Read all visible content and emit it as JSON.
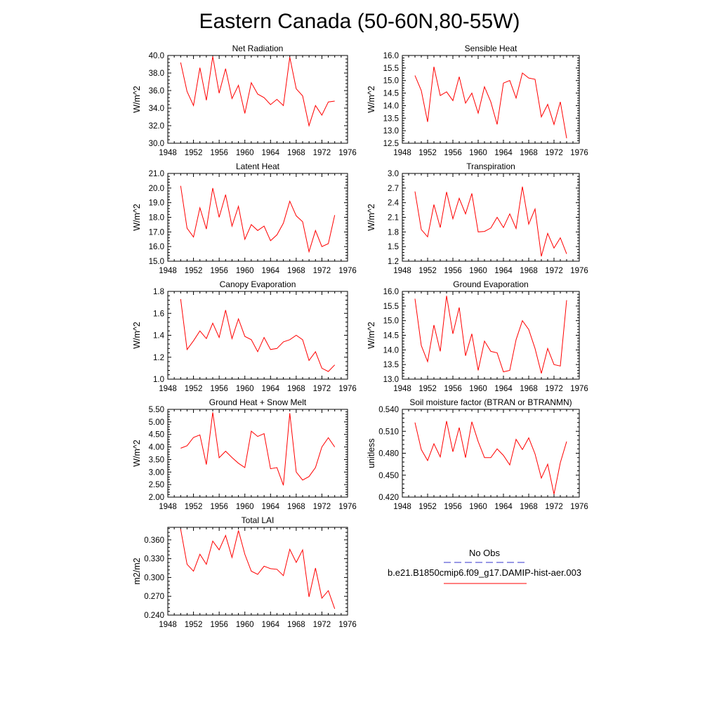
{
  "figure": {
    "title": "Eastern Canada (50-60N,80-55W)",
    "legend": {
      "entries": [
        {
          "label": "No Obs",
          "color": "#3333cc",
          "style": "dashed"
        },
        {
          "label": "b.e21.B1850cmip6.f09_g17.DAMIP-hist-aer.003",
          "color": "#ff0000",
          "style": "solid"
        }
      ]
    }
  },
  "chart_data": [
    {
      "type": "line",
      "title": "Net Radiation",
      "ylabel": "W/m^2",
      "xlim": [
        1948,
        1976
      ],
      "xticks": [
        "1948",
        "1952",
        "1956",
        "1960",
        "1964",
        "1968",
        "1972",
        "1976"
      ],
      "ylim": [
        30,
        40
      ],
      "yticks": [
        "30.0",
        "32.0",
        "34.0",
        "36.0",
        "38.0",
        "40.0"
      ],
      "series": [
        {
          "color": "#ff0000",
          "x": [
            1950,
            1951,
            1952,
            1953,
            1954,
            1955,
            1956,
            1957,
            1958,
            1959,
            1960,
            1961,
            1962,
            1963,
            1964,
            1965,
            1966,
            1967,
            1968,
            1969,
            1970,
            1971,
            1972,
            1973,
            1974
          ],
          "values": [
            39.2,
            35.9,
            34.3,
            38.6,
            34.9,
            39.9,
            35.7,
            38.5,
            35.1,
            36.6,
            33.4,
            36.9,
            35.6,
            35.2,
            34.4,
            35.0,
            34.3,
            39.8,
            36.2,
            35.4,
            32.0,
            34.3,
            33.2,
            34.7,
            34.8
          ]
        }
      ]
    },
    {
      "type": "line",
      "title": "Sensible Heat",
      "ylabel": "W/m^2",
      "xlim": [
        1948,
        1976
      ],
      "xticks": [
        "1948",
        "1952",
        "1956",
        "1960",
        "1964",
        "1968",
        "1972",
        "1976"
      ],
      "ylim": [
        12.5,
        16
      ],
      "yticks": [
        "12.5",
        "13.0",
        "13.5",
        "14.0",
        "14.5",
        "15.0",
        "15.5",
        "16.0"
      ],
      "series": [
        {
          "color": "#ff0000",
          "x": [
            1950,
            1951,
            1952,
            1953,
            1954,
            1955,
            1956,
            1957,
            1958,
            1959,
            1960,
            1961,
            1962,
            1963,
            1964,
            1965,
            1966,
            1967,
            1968,
            1969,
            1970,
            1971,
            1972,
            1973,
            1974
          ],
          "values": [
            15.2,
            14.6,
            13.35,
            15.55,
            14.4,
            14.55,
            14.2,
            15.15,
            14.1,
            14.5,
            13.7,
            14.75,
            14.15,
            13.25,
            14.9,
            15.0,
            14.3,
            15.3,
            15.1,
            15.05,
            13.55,
            14.05,
            13.25,
            14.15,
            12.7
          ]
        }
      ]
    },
    {
      "type": "line",
      "title": "Latent Heat",
      "ylabel": "W/m^2",
      "xlim": [
        1948,
        1976
      ],
      "xticks": [
        "1948",
        "1952",
        "1956",
        "1960",
        "1964",
        "1968",
        "1972",
        "1976"
      ],
      "ylim": [
        15,
        21
      ],
      "yticks": [
        "15.0",
        "16.0",
        "17.0",
        "18.0",
        "19.0",
        "20.0",
        "21.0"
      ],
      "series": [
        {
          "color": "#ff0000",
          "x": [
            1950,
            1951,
            1952,
            1953,
            1954,
            1955,
            1956,
            1957,
            1958,
            1959,
            1960,
            1961,
            1962,
            1963,
            1964,
            1965,
            1966,
            1967,
            1968,
            1969,
            1970,
            1971,
            1972,
            1973,
            1974
          ],
          "values": [
            20.15,
            17.25,
            16.65,
            18.65,
            17.2,
            20.0,
            18.0,
            19.55,
            17.4,
            18.75,
            16.5,
            17.5,
            17.1,
            17.4,
            16.4,
            16.8,
            17.6,
            19.1,
            18.1,
            17.7,
            15.65,
            17.1,
            16.0,
            16.2,
            18.15
          ]
        }
      ]
    },
    {
      "type": "line",
      "title": "Transpiration",
      "ylabel": "W/m^2",
      "xlim": [
        1948,
        1976
      ],
      "xticks": [
        "1948",
        "1952",
        "1956",
        "1960",
        "1964",
        "1968",
        "1972",
        "1976"
      ],
      "ylim": [
        1.2,
        3.0
      ],
      "yticks": [
        "1.2",
        "1.5",
        "1.8",
        "2.1",
        "2.4",
        "2.7",
        "3.0"
      ],
      "series": [
        {
          "color": "#ff0000",
          "x": [
            1950,
            1951,
            1952,
            1953,
            1954,
            1955,
            1956,
            1957,
            1958,
            1959,
            1960,
            1961,
            1962,
            1963,
            1964,
            1965,
            1966,
            1967,
            1968,
            1969,
            1970,
            1971,
            1972,
            1973,
            1974
          ],
          "values": [
            2.63,
            1.85,
            1.7,
            2.36,
            1.89,
            2.62,
            2.07,
            2.49,
            2.17,
            2.59,
            1.8,
            1.81,
            1.88,
            2.1,
            1.89,
            2.17,
            1.87,
            2.73,
            1.96,
            2.27,
            1.3,
            1.77,
            1.47,
            1.68,
            1.35
          ]
        }
      ]
    },
    {
      "type": "line",
      "title": "Canopy Evaporation",
      "ylabel": "W/m^2",
      "xlim": [
        1948,
        1976
      ],
      "xticks": [
        "1948",
        "1952",
        "1956",
        "1960",
        "1964",
        "1968",
        "1972",
        "1976"
      ],
      "ylim": [
        1.0,
        1.8
      ],
      "yticks": [
        "1.0",
        "1.2",
        "1.4",
        "1.6",
        "1.8"
      ],
      "series": [
        {
          "color": "#ff0000",
          "x": [
            1950,
            1951,
            1952,
            1953,
            1954,
            1955,
            1956,
            1957,
            1958,
            1959,
            1960,
            1961,
            1962,
            1963,
            1964,
            1965,
            1966,
            1967,
            1968,
            1969,
            1970,
            1971,
            1972,
            1973,
            1974
          ],
          "values": [
            1.73,
            1.27,
            1.35,
            1.44,
            1.37,
            1.51,
            1.38,
            1.63,
            1.37,
            1.55,
            1.39,
            1.36,
            1.25,
            1.38,
            1.27,
            1.28,
            1.34,
            1.36,
            1.4,
            1.36,
            1.17,
            1.25,
            1.1,
            1.07,
            1.13
          ]
        }
      ]
    },
    {
      "type": "line",
      "title": "Ground Evaporation",
      "ylabel": "W/m^2",
      "xlim": [
        1948,
        1976
      ],
      "xticks": [
        "1948",
        "1952",
        "1956",
        "1960",
        "1964",
        "1968",
        "1972",
        "1976"
      ],
      "ylim": [
        13,
        16
      ],
      "yticks": [
        "13.0",
        "13.5",
        "14.0",
        "14.5",
        "15.0",
        "15.5",
        "16.0"
      ],
      "series": [
        {
          "color": "#ff0000",
          "x": [
            1950,
            1951,
            1952,
            1953,
            1954,
            1955,
            1956,
            1957,
            1958,
            1959,
            1960,
            1961,
            1962,
            1963,
            1964,
            1965,
            1966,
            1967,
            1968,
            1969,
            1970,
            1971,
            1972,
            1973,
            1974
          ],
          "values": [
            15.75,
            14.15,
            13.6,
            14.85,
            13.95,
            15.85,
            14.55,
            15.45,
            13.8,
            14.55,
            13.3,
            14.3,
            13.95,
            13.9,
            13.25,
            13.3,
            14.35,
            15.0,
            14.7,
            14.05,
            13.2,
            14.05,
            13.5,
            13.45,
            15.7
          ]
        }
      ]
    },
    {
      "type": "line",
      "title": "Ground Heat + Snow Melt",
      "ylabel": "W/m^2",
      "xlim": [
        1948,
        1976
      ],
      "xticks": [
        "1948",
        "1952",
        "1956",
        "1960",
        "1964",
        "1968",
        "1972",
        "1976"
      ],
      "ylim": [
        2.0,
        5.5
      ],
      "yticks": [
        "2.00",
        "2.50",
        "3.00",
        "3.50",
        "4.00",
        "4.50",
        "5.00",
        "5.50"
      ],
      "series": [
        {
          "color": "#ff0000",
          "x": [
            1950,
            1951,
            1952,
            1953,
            1954,
            1955,
            1956,
            1957,
            1958,
            1959,
            1960,
            1961,
            1962,
            1963,
            1964,
            1965,
            1966,
            1967,
            1968,
            1969,
            1970,
            1971,
            1972,
            1973,
            1974
          ],
          "values": [
            3.95,
            4.05,
            4.38,
            4.48,
            3.3,
            5.38,
            3.57,
            3.83,
            3.58,
            3.35,
            3.18,
            4.63,
            4.42,
            4.53,
            3.13,
            3.18,
            2.47,
            5.35,
            3.0,
            2.68,
            2.82,
            3.18,
            4.0,
            4.37,
            4.0
          ]
        }
      ]
    },
    {
      "type": "line",
      "title": "Soil moisture factor (BTRAN or BTRANMN)",
      "ylabel": "unitless",
      "xlim": [
        1948,
        1976
      ],
      "xticks": [
        "1948",
        "1952",
        "1956",
        "1960",
        "1964",
        "1968",
        "1972",
        "1976"
      ],
      "ylim": [
        0.42,
        0.54
      ],
      "yticks": [
        "0.420",
        "0.450",
        "0.480",
        "0.510",
        "0.540"
      ],
      "series": [
        {
          "color": "#ff0000",
          "x": [
            1950,
            1951,
            1952,
            1953,
            1954,
            1955,
            1956,
            1957,
            1958,
            1959,
            1960,
            1961,
            1962,
            1963,
            1964,
            1965,
            1966,
            1967,
            1968,
            1969,
            1970,
            1971,
            1972,
            1973,
            1974
          ],
          "values": [
            0.522,
            0.485,
            0.47,
            0.493,
            0.475,
            0.524,
            0.482,
            0.515,
            0.474,
            0.523,
            0.496,
            0.474,
            0.474,
            0.486,
            0.477,
            0.464,
            0.499,
            0.485,
            0.501,
            0.479,
            0.446,
            0.465,
            0.424,
            0.467,
            0.496
          ]
        }
      ]
    },
    {
      "type": "line",
      "title": "Total LAI",
      "ylabel": "m2/m2",
      "xlim": [
        1948,
        1976
      ],
      "xticks": [
        "1948",
        "1952",
        "1956",
        "1960",
        "1964",
        "1968",
        "1972",
        "1976"
      ],
      "ylim": [
        0.24,
        0.38
      ],
      "yticks": [
        "0.240",
        "0.270",
        "0.300",
        "0.330",
        "0.360"
      ],
      "series": [
        {
          "color": "#ff0000",
          "x": [
            1950,
            1951,
            1952,
            1953,
            1954,
            1955,
            1956,
            1957,
            1958,
            1959,
            1960,
            1961,
            1962,
            1963,
            1964,
            1965,
            1966,
            1967,
            1968,
            1969,
            1970,
            1971,
            1972,
            1973,
            1974
          ],
          "values": [
            0.377,
            0.321,
            0.31,
            0.337,
            0.321,
            0.358,
            0.344,
            0.367,
            0.332,
            0.375,
            0.337,
            0.31,
            0.305,
            0.318,
            0.314,
            0.313,
            0.303,
            0.345,
            0.324,
            0.344,
            0.269,
            0.315,
            0.267,
            0.279,
            0.25
          ]
        }
      ]
    }
  ]
}
